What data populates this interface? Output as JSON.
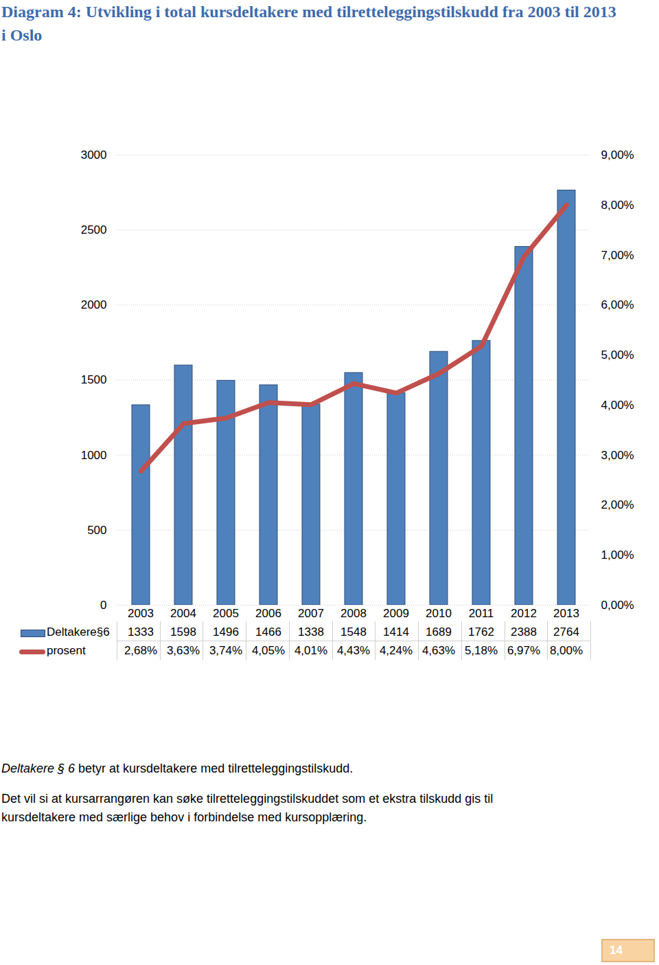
{
  "chart_data": {
    "type": "bar",
    "title": "Diagram 4: Utvikling i total kursdeltakere med tilretteleggingstilskudd fra 2003 til 2013 i Oslo",
    "categories": [
      "2003",
      "2004",
      "2005",
      "2006",
      "2007",
      "2008",
      "2009",
      "2010",
      "2011",
      "2012",
      "2013"
    ],
    "series": [
      {
        "name": "Deltakere§6",
        "type": "bar",
        "color": "#4f81bd",
        "values": [
          1333,
          1598,
          1496,
          1466,
          1338,
          1548,
          1414,
          1689,
          1762,
          2388,
          2764
        ]
      },
      {
        "name": "prosent",
        "type": "line",
        "axis": "y2",
        "color": "#c0504d",
        "values": [
          2.68,
          3.63,
          3.74,
          4.05,
          4.01,
          4.43,
          4.24,
          4.63,
          5.18,
          6.97,
          8.0
        ],
        "value_labels": [
          "2,68%",
          "3,63%",
          "3,74%",
          "4,05%",
          "4,01%",
          "4,43%",
          "4,24%",
          "4,63%",
          "5,18%",
          "6,97%",
          "8,00%"
        ]
      }
    ],
    "ylim": [
      0,
      3000
    ],
    "yticks": [
      0,
      500,
      1000,
      1500,
      2000,
      2500,
      3000
    ],
    "y2lim": [
      0,
      9
    ],
    "y2ticks": [
      {
        "value": 0,
        "label": "0,00%"
      },
      {
        "value": 1,
        "label": "1,00%"
      },
      {
        "value": 2,
        "label": "2,00%"
      },
      {
        "value": 3,
        "label": "3,00%"
      },
      {
        "value": 4,
        "label": "4,00%"
      },
      {
        "value": 5,
        "label": "5,00%"
      },
      {
        "value": 6,
        "label": "6,00%"
      },
      {
        "value": 7,
        "label": "7,00%"
      },
      {
        "value": 8,
        "label": "8,00%"
      },
      {
        "value": 9,
        "label": "9,00%"
      }
    ],
    "grid": true,
    "notes": [
      [
        {
          "text": "Deltakere § 6",
          "italic": true
        },
        {
          "text": " betyr at kursdeltakere med tilretteleggingstilskudd."
        }
      ],
      [
        {
          "text": "Det vil si at kursarrangøren kan søke tilretteleggingstilskuddet som et ekstra tilskudd gis til kursdeltakere med særlige behov i forbindelse med kursopplæring."
        }
      ]
    ],
    "page_number": "14"
  }
}
